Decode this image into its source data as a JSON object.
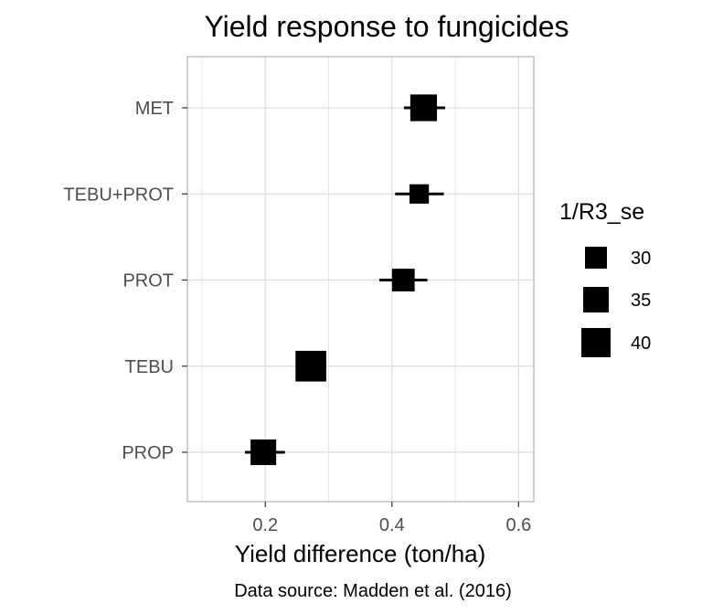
{
  "chart_data": {
    "type": "scatter",
    "title": "Yield response to fungicides",
    "xlabel": "Yield difference (ton/ha)",
    "ylabel": "",
    "caption": "Data source: Madden et al. (2016)",
    "xlim": [
      0.077,
      0.624
    ],
    "x_ticks": [
      0.2,
      0.4,
      0.6
    ],
    "x_tick_labels": [
      "0.2",
      "0.4",
      "0.6"
    ],
    "categories": [
      "MET",
      "TEBU+PROT",
      "PROT",
      "TEBU",
      "PROP"
    ],
    "points": [
      {
        "category": "MET",
        "estimate": 0.45,
        "ci_low": 0.419,
        "ci_high": 0.484,
        "weight": 36.5
      },
      {
        "category": "TEBU+PROT",
        "estimate": 0.443,
        "ci_low": 0.405,
        "ci_high": 0.482,
        "weight": 26.5
      },
      {
        "category": "PROT",
        "estimate": 0.418,
        "ci_low": 0.38,
        "ci_high": 0.456,
        "weight": 31
      },
      {
        "category": "TEBU",
        "estimate": 0.272,
        "ci_low": 0.262,
        "ci_high": 0.285,
        "weight": 42
      },
      {
        "category": "PROP",
        "estimate": 0.197,
        "ci_low": 0.168,
        "ci_high": 0.231,
        "weight": 35
      }
    ],
    "legend": {
      "title": "1/R3_se",
      "position": "right",
      "entries": [
        {
          "label": "30",
          "value": 30
        },
        {
          "label": "35",
          "value": 35
        },
        {
          "label": "40",
          "value": 40
        }
      ]
    },
    "grid": true,
    "colors": {
      "marker": "#000000",
      "grid": "#dcdcdc",
      "panel_border": "#b3b3b3"
    }
  }
}
